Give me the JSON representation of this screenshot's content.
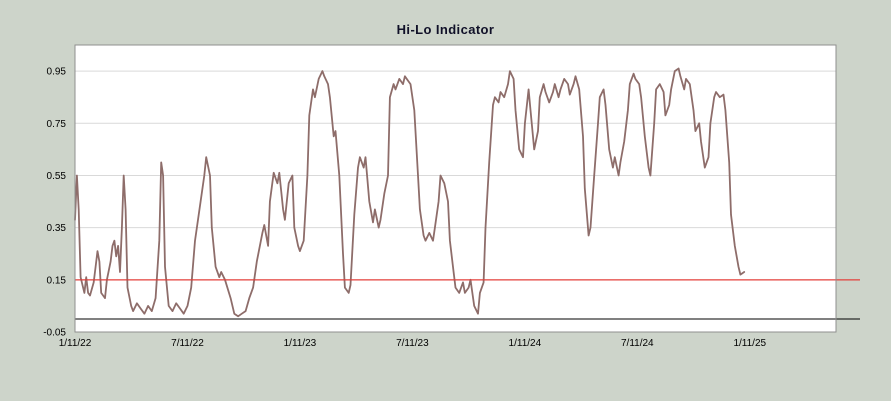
{
  "colors": {
    "background": "#cdd4ca",
    "plot_background": "#ffffff",
    "grid": "#d9d9d9",
    "frame": "#8f8f8f",
    "series": "#8e6d6a",
    "threshold_line": "#e53935",
    "zero_line": "#000000",
    "title_text": "#101028",
    "tick_text": "#000000"
  },
  "chart_data": {
    "type": "line",
    "title": "Hi-Lo Indicator",
    "xlabel": "",
    "ylabel": "",
    "grid": "horizontal",
    "legend": "none",
    "x_units": "months",
    "xlim": [
      0,
      40.6
    ],
    "ylim": [
      -0.05,
      1.05
    ],
    "xticks": [
      {
        "pos": 0,
        "label": "1/11/22"
      },
      {
        "pos": 6,
        "label": "7/11/22"
      },
      {
        "pos": 12,
        "label": "1/11/23"
      },
      {
        "pos": 18,
        "label": "7/11/23"
      },
      {
        "pos": 24,
        "label": "1/11/24"
      },
      {
        "pos": 30,
        "label": "7/11/24"
      },
      {
        "pos": 36,
        "label": "1/11/25"
      }
    ],
    "yticks": [
      {
        "value": 0.95,
        "label": "0.95"
      },
      {
        "value": 0.75,
        "label": "0.75"
      },
      {
        "value": 0.55,
        "label": "0.55"
      },
      {
        "value": 0.35,
        "label": "0.35"
      },
      {
        "value": 0.15,
        "label": "0.15"
      },
      {
        "value": -0.05,
        "label": "-0.05"
      }
    ],
    "reference_lines": [
      {
        "value": 0.0,
        "color": "#000000",
        "name": "zero-line"
      },
      {
        "value": 0.15,
        "color": "#e53935",
        "name": "threshold-line"
      }
    ],
    "series": [
      {
        "name": "Hi-Lo Indicator",
        "color": "#8e6d6a",
        "points": [
          [
            0,
            0.38
          ],
          [
            0.1,
            0.55
          ],
          [
            0.2,
            0.42
          ],
          [
            0.3,
            0.16
          ],
          [
            0.5,
            0.1
          ],
          [
            0.6,
            0.16
          ],
          [
            0.7,
            0.1
          ],
          [
            0.8,
            0.09
          ],
          [
            1.0,
            0.14
          ],
          [
            1.1,
            0.2
          ],
          [
            1.2,
            0.26
          ],
          [
            1.3,
            0.22
          ],
          [
            1.4,
            0.1
          ],
          [
            1.6,
            0.08
          ],
          [
            1.7,
            0.15
          ],
          [
            1.9,
            0.22
          ],
          [
            2.0,
            0.28
          ],
          [
            2.1,
            0.3
          ],
          [
            2.2,
            0.24
          ],
          [
            2.3,
            0.28
          ],
          [
            2.4,
            0.18
          ],
          [
            2.5,
            0.35
          ],
          [
            2.6,
            0.55
          ],
          [
            2.7,
            0.42
          ],
          [
            2.8,
            0.12
          ],
          [
            3.0,
            0.05
          ],
          [
            3.1,
            0.03
          ],
          [
            3.3,
            0.06
          ],
          [
            3.5,
            0.04
          ],
          [
            3.7,
            0.02
          ],
          [
            3.9,
            0.05
          ],
          [
            4.1,
            0.03
          ],
          [
            4.3,
            0.08
          ],
          [
            4.5,
            0.3
          ],
          [
            4.6,
            0.6
          ],
          [
            4.7,
            0.55
          ],
          [
            4.8,
            0.2
          ],
          [
            5.0,
            0.05
          ],
          [
            5.2,
            0.03
          ],
          [
            5.4,
            0.06
          ],
          [
            5.6,
            0.04
          ],
          [
            5.8,
            0.02
          ],
          [
            6.0,
            0.05
          ],
          [
            6.2,
            0.12
          ],
          [
            6.4,
            0.3
          ],
          [
            6.7,
            0.45
          ],
          [
            6.9,
            0.55
          ],
          [
            7.0,
            0.62
          ],
          [
            7.2,
            0.55
          ],
          [
            7.3,
            0.35
          ],
          [
            7.5,
            0.2
          ],
          [
            7.7,
            0.16
          ],
          [
            7.8,
            0.18
          ],
          [
            8.0,
            0.15
          ],
          [
            8.3,
            0.08
          ],
          [
            8.5,
            0.02
          ],
          [
            8.7,
            0.01
          ],
          [
            8.9,
            0.02
          ],
          [
            9.1,
            0.03
          ],
          [
            9.3,
            0.08
          ],
          [
            9.5,
            0.12
          ],
          [
            9.7,
            0.22
          ],
          [
            10.0,
            0.33
          ],
          [
            10.1,
            0.36
          ],
          [
            10.3,
            0.28
          ],
          [
            10.4,
            0.45
          ],
          [
            10.6,
            0.56
          ],
          [
            10.8,
            0.52
          ],
          [
            10.9,
            0.56
          ],
          [
            11.1,
            0.42
          ],
          [
            11.2,
            0.38
          ],
          [
            11.4,
            0.52
          ],
          [
            11.6,
            0.55
          ],
          [
            11.7,
            0.35
          ],
          [
            11.9,
            0.28
          ],
          [
            12.0,
            0.26
          ],
          [
            12.2,
            0.3
          ],
          [
            12.4,
            0.55
          ],
          [
            12.5,
            0.78
          ],
          [
            12.7,
            0.88
          ],
          [
            12.8,
            0.85
          ],
          [
            13.0,
            0.92
          ],
          [
            13.2,
            0.95
          ],
          [
            13.3,
            0.93
          ],
          [
            13.5,
            0.9
          ],
          [
            13.6,
            0.85
          ],
          [
            13.8,
            0.7
          ],
          [
            13.9,
            0.72
          ],
          [
            14.1,
            0.55
          ],
          [
            14.3,
            0.25
          ],
          [
            14.4,
            0.12
          ],
          [
            14.6,
            0.1
          ],
          [
            14.7,
            0.13
          ],
          [
            14.9,
            0.4
          ],
          [
            15.1,
            0.58
          ],
          [
            15.2,
            0.62
          ],
          [
            15.4,
            0.58
          ],
          [
            15.5,
            0.62
          ],
          [
            15.7,
            0.45
          ],
          [
            15.9,
            0.37
          ],
          [
            16.0,
            0.42
          ],
          [
            16.2,
            0.35
          ],
          [
            16.3,
            0.38
          ],
          [
            16.5,
            0.48
          ],
          [
            16.7,
            0.55
          ],
          [
            16.8,
            0.85
          ],
          [
            17.0,
            0.9
          ],
          [
            17.1,
            0.88
          ],
          [
            17.3,
            0.92
          ],
          [
            17.5,
            0.9
          ],
          [
            17.6,
            0.93
          ],
          [
            17.8,
            0.91
          ],
          [
            17.9,
            0.9
          ],
          [
            18.1,
            0.8
          ],
          [
            18.3,
            0.55
          ],
          [
            18.4,
            0.42
          ],
          [
            18.6,
            0.32
          ],
          [
            18.7,
            0.3
          ],
          [
            18.9,
            0.33
          ],
          [
            19.1,
            0.3
          ],
          [
            19.2,
            0.35
          ],
          [
            19.4,
            0.45
          ],
          [
            19.5,
            0.55
          ],
          [
            19.7,
            0.52
          ],
          [
            19.9,
            0.45
          ],
          [
            20.0,
            0.3
          ],
          [
            20.2,
            0.18
          ],
          [
            20.3,
            0.12
          ],
          [
            20.5,
            0.1
          ],
          [
            20.7,
            0.14
          ],
          [
            20.8,
            0.1
          ],
          [
            21.0,
            0.12
          ],
          [
            21.1,
            0.15
          ],
          [
            21.3,
            0.05
          ],
          [
            21.5,
            0.02
          ],
          [
            21.6,
            0.1
          ],
          [
            21.8,
            0.14
          ],
          [
            21.9,
            0.35
          ],
          [
            22.1,
            0.6
          ],
          [
            22.3,
            0.82
          ],
          [
            22.4,
            0.85
          ],
          [
            22.6,
            0.83
          ],
          [
            22.7,
            0.87
          ],
          [
            22.9,
            0.85
          ],
          [
            23.1,
            0.9
          ],
          [
            23.2,
            0.95
          ],
          [
            23.4,
            0.92
          ],
          [
            23.5,
            0.8
          ],
          [
            23.7,
            0.65
          ],
          [
            23.9,
            0.62
          ],
          [
            24.0,
            0.75
          ],
          [
            24.2,
            0.88
          ],
          [
            24.3,
            0.8
          ],
          [
            24.5,
            0.65
          ],
          [
            24.7,
            0.72
          ],
          [
            24.8,
            0.85
          ],
          [
            25.0,
            0.9
          ],
          [
            25.1,
            0.87
          ],
          [
            25.3,
            0.83
          ],
          [
            25.5,
            0.87
          ],
          [
            25.6,
            0.9
          ],
          [
            25.8,
            0.85
          ],
          [
            25.9,
            0.88
          ],
          [
            26.1,
            0.92
          ],
          [
            26.3,
            0.9
          ],
          [
            26.4,
            0.86
          ],
          [
            26.6,
            0.9
          ],
          [
            26.7,
            0.93
          ],
          [
            26.9,
            0.88
          ],
          [
            27.1,
            0.7
          ],
          [
            27.2,
            0.5
          ],
          [
            27.4,
            0.32
          ],
          [
            27.5,
            0.35
          ],
          [
            27.7,
            0.55
          ],
          [
            27.9,
            0.75
          ],
          [
            28.0,
            0.85
          ],
          [
            28.2,
            0.88
          ],
          [
            28.3,
            0.82
          ],
          [
            28.5,
            0.65
          ],
          [
            28.7,
            0.58
          ],
          [
            28.8,
            0.62
          ],
          [
            29.0,
            0.55
          ],
          [
            29.1,
            0.6
          ],
          [
            29.3,
            0.68
          ],
          [
            29.5,
            0.8
          ],
          [
            29.6,
            0.9
          ],
          [
            29.8,
            0.94
          ],
          [
            29.9,
            0.92
          ],
          [
            30.1,
            0.9
          ],
          [
            30.2,
            0.85
          ],
          [
            30.4,
            0.7
          ],
          [
            30.6,
            0.58
          ],
          [
            30.7,
            0.55
          ],
          [
            30.9,
            0.75
          ],
          [
            31.0,
            0.88
          ],
          [
            31.2,
            0.9
          ],
          [
            31.4,
            0.87
          ],
          [
            31.5,
            0.78
          ],
          [
            31.7,
            0.82
          ],
          [
            31.8,
            0.88
          ],
          [
            32.0,
            0.95
          ],
          [
            32.2,
            0.96
          ],
          [
            32.3,
            0.93
          ],
          [
            32.5,
            0.88
          ],
          [
            32.6,
            0.92
          ],
          [
            32.8,
            0.9
          ],
          [
            33.0,
            0.8
          ],
          [
            33.1,
            0.72
          ],
          [
            33.3,
            0.75
          ],
          [
            33.4,
            0.68
          ],
          [
            33.6,
            0.58
          ],
          [
            33.8,
            0.62
          ],
          [
            33.9,
            0.75
          ],
          [
            34.1,
            0.85
          ],
          [
            34.2,
            0.87
          ],
          [
            34.4,
            0.85
          ],
          [
            34.6,
            0.86
          ],
          [
            34.7,
            0.8
          ],
          [
            34.9,
            0.6
          ],
          [
            35.0,
            0.4
          ],
          [
            35.2,
            0.28
          ],
          [
            35.4,
            0.2
          ],
          [
            35.5,
            0.17
          ],
          [
            35.7,
            0.18
          ]
        ]
      }
    ]
  }
}
